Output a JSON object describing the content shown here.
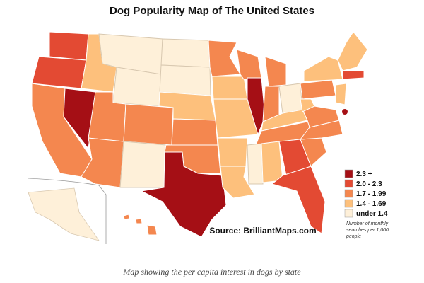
{
  "title": "Dog Popularity Map of The United States",
  "legend": [
    {
      "label": "2.3 +",
      "color": "#a50f15"
    },
    {
      "label": "2.0 - 2.3",
      "color": "#e34a33"
    },
    {
      "label": "1.7 - 1.99",
      "color": "#f4874f"
    },
    {
      "label": "1.4 - 1.69",
      "color": "#fdc07c"
    },
    {
      "label": "under 1.4",
      "color": "#fef0d9"
    }
  ],
  "source": "Source: BrilliantMaps.com",
  "note": [
    "Number of monthly",
    "searches per 1,000",
    "people"
  ],
  "caption": "Map showing the per capita interest in dogs by state"
}
